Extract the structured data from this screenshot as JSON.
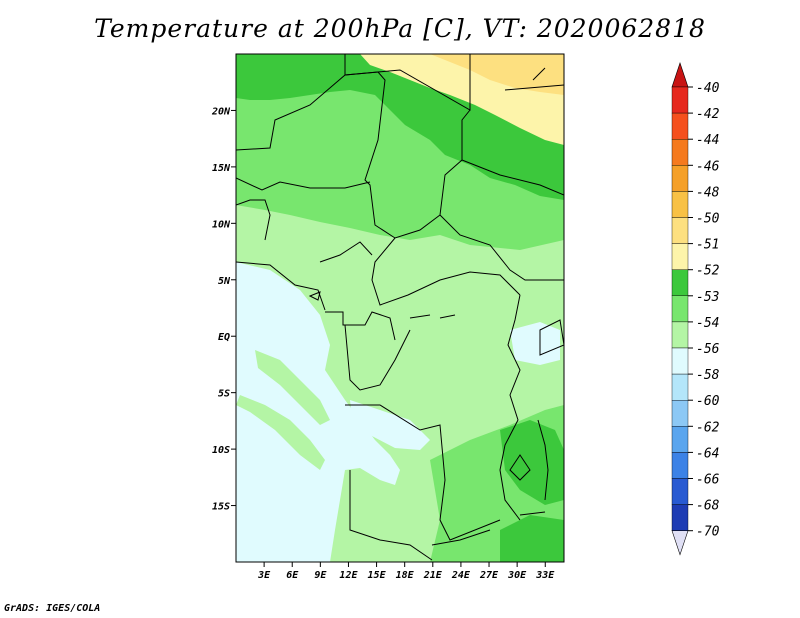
{
  "title": "Temperature at 200hPa [C], VT: 2020062818",
  "credit": "GrADS: IGES/COLA",
  "map": {
    "lat_ticks": [
      {
        "value": 20,
        "label": "20N"
      },
      {
        "value": 15,
        "label": "15N"
      },
      {
        "value": 10,
        "label": "10N"
      },
      {
        "value": 5,
        "label": "5N"
      },
      {
        "value": 0,
        "label": "EQ"
      },
      {
        "value": -5,
        "label": "5S"
      },
      {
        "value": -10,
        "label": "10S"
      },
      {
        "value": -15,
        "label": "15S"
      }
    ],
    "lon_ticks": [
      {
        "value": 3,
        "label": "3E"
      },
      {
        "value": 6,
        "label": "6E"
      },
      {
        "value": 9,
        "label": "9E"
      },
      {
        "value": 12,
        "label": "12E"
      },
      {
        "value": 15,
        "label": "15E"
      },
      {
        "value": 18,
        "label": "18E"
      },
      {
        "value": 21,
        "label": "21E"
      },
      {
        "value": 24,
        "label": "24E"
      },
      {
        "value": 27,
        "label": "27E"
      },
      {
        "value": 30,
        "label": "30E"
      },
      {
        "value": 33,
        "label": "33E"
      }
    ],
    "lat_range": [
      -20,
      25
    ],
    "lon_range": [
      0,
      35
    ]
  },
  "colorbar": {
    "levels": [
      {
        "label": "-40",
        "color": "#e6281e"
      },
      {
        "label": "-42",
        "color": "#f5501e"
      },
      {
        "label": "-44",
        "color": "#f57a1e"
      },
      {
        "label": "-46",
        "color": "#f5a028"
      },
      {
        "label": "-48",
        "color": "#f8c145"
      },
      {
        "label": "-50",
        "color": "#fde080"
      },
      {
        "label": "-51",
        "color": "#fdf4aa"
      },
      {
        "label": "-52",
        "color": "#3cc83c"
      },
      {
        "label": "-53",
        "color": "#78e66e"
      },
      {
        "label": "-54",
        "color": "#b4f5a5"
      },
      {
        "label": "-56",
        "color": "#e0fbfe"
      },
      {
        "label": "-58",
        "color": "#b4e6fa"
      },
      {
        "label": "-60",
        "color": "#8cc8f5"
      },
      {
        "label": "-62",
        "color": "#5aa5ee"
      },
      {
        "label": "-64",
        "color": "#3c82e6"
      },
      {
        "label": "-66",
        "color": "#285ad2"
      },
      {
        "label": "-68",
        "color": "#1e3cb4"
      },
      {
        "label": "-70",
        "color": "#0a0a78"
      }
    ],
    "top_arrow_color": "#c81414",
    "bottom_arrow_color": "#e0e0f5"
  }
}
